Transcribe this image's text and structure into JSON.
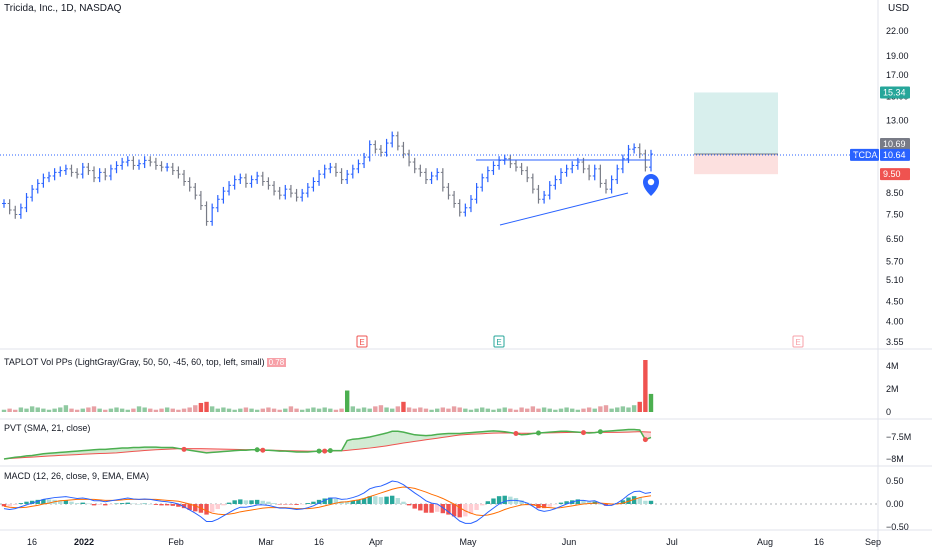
{
  "header": {
    "symbol_title": "Tricida, Inc., 1D, NASDAQ",
    "currency": "USD"
  },
  "price_axis": {
    "ticks": [
      "22.00",
      "19.00",
      "17.00",
      "15.00",
      "13.00",
      "11.00",
      "9.50",
      "8.50",
      "7.50",
      "6.50",
      "5.70",
      "5.10",
      "4.50",
      "4.00",
      "3.55"
    ],
    "ticker_tag": "TCDA",
    "last_price": "10.64",
    "entry_label": "10.69",
    "target_label": "15.34",
    "stop_label": "9.50"
  },
  "colors": {
    "up": "#2962ff",
    "down": "#787b86",
    "target": "#26a69a",
    "stop": "#ef5350",
    "pvt_up": "#4caf50",
    "pvt_down": "#ef5350"
  },
  "earnings": {
    "marker_label": "E"
  },
  "volume_pane": {
    "label": "TAPLOT Vol PPs (LightGray/Gray, 50, 50, -45, 60, top, left, small)",
    "badge": "0.78",
    "ticks": [
      "4M",
      "2M",
      "0"
    ]
  },
  "pvt_pane": {
    "label": "PVT (SMA, 21, close)",
    "ticks": [
      "−7.5M",
      "−8M"
    ]
  },
  "macd_pane": {
    "label": "MACD (12, 26, close, 9, EMA, EMA)",
    "ticks": [
      "0.50",
      "0.00",
      "−0.50"
    ]
  },
  "time_axis": {
    "ticks": [
      "16",
      "2022",
      "Feb",
      "Mar",
      "16",
      "Apr",
      "May",
      "Jun",
      "Jul",
      "Aug",
      "16",
      "Sep"
    ]
  },
  "chart_data": {
    "type": "ohlc",
    "price_values": [
      8.0,
      7.7,
      7.5,
      7.8,
      8.3,
      8.7,
      9.0,
      9.3,
      9.4,
      9.6,
      9.7,
      9.8,
      9.6,
      9.5,
      9.9,
      9.7,
      9.3,
      9.6,
      9.4,
      9.8,
      10.0,
      10.2,
      10.3,
      10.0,
      10.1,
      10.3,
      10.2,
      10.0,
      9.9,
      9.9,
      9.7,
      9.5,
      9.1,
      8.8,
      8.4,
      7.9,
      7.2,
      7.8,
      8.2,
      8.6,
      8.9,
      9.2,
      9.3,
      9.0,
      9.2,
      9.4,
      9.1,
      8.9,
      8.6,
      8.4,
      8.7,
      8.5,
      8.3,
      8.5,
      8.8,
      9.1,
      9.5,
      9.8,
      9.9,
      9.6,
      9.2,
      9.5,
      9.8,
      10.1,
      10.5,
      11.3,
      11.0,
      10.8,
      11.4,
      11.9,
      11.2,
      10.7,
      10.2,
      9.8,
      9.6,
      9.2,
      9.4,
      9.6,
      8.8,
      8.4,
      8.0,
      7.6,
      7.8,
      8.2,
      8.8,
      9.3,
      9.7,
      10.0,
      10.3,
      10.4,
      10.1,
      9.9,
      9.7,
      9.3,
      8.7,
      8.2,
      8.4,
      8.9,
      9.2,
      9.6,
      9.8,
      10.0,
      10.2,
      9.8,
      9.4,
      9.8,
      9.0,
      8.7,
      9.2,
      9.8,
      10.4,
      11.0,
      11.1,
      10.7,
      9.9,
      10.69
    ],
    "entry": 10.69,
    "target": 15.34,
    "stop": 9.5,
    "last": 10.64,
    "volume_millions": [
      0.2,
      0.3,
      0.2,
      0.4,
      0.3,
      0.5,
      0.4,
      0.3,
      0.2,
      0.3,
      0.4,
      0.6,
      0.3,
      0.2,
      0.3,
      0.4,
      0.5,
      0.3,
      0.2,
      0.3,
      0.4,
      0.3,
      0.2,
      0.3,
      0.5,
      0.4,
      0.3,
      0.2,
      0.3,
      0.4,
      0.3,
      0.2,
      0.3,
      0.4,
      0.6,
      0.8,
      0.9,
      0.5,
      0.3,
      0.4,
      0.3,
      0.2,
      0.3,
      0.4,
      0.3,
      0.2,
      0.3,
      0.4,
      0.3,
      0.2,
      0.3,
      0.5,
      0.3,
      0.2,
      0.3,
      0.4,
      0.3,
      0.4,
      0.3,
      0.2,
      0.3,
      1.9,
      0.5,
      0.3,
      0.4,
      0.3,
      0.5,
      0.6,
      0.4,
      0.3,
      0.5,
      0.9,
      0.4,
      0.3,
      0.4,
      0.3,
      0.2,
      0.3,
      0.4,
      0.3,
      0.5,
      0.4,
      0.3,
      0.2,
      0.3,
      0.4,
      0.3,
      0.2,
      0.3,
      0.4,
      0.3,
      0.2,
      0.4,
      0.3,
      0.5,
      0.3,
      0.4,
      0.3,
      0.2,
      0.3,
      0.4,
      0.3,
      0.2,
      0.3,
      0.4,
      0.3,
      0.5,
      0.6,
      0.3,
      0.4,
      0.5,
      0.4,
      0.6,
      0.9,
      4.6,
      1.6
    ],
    "pvt": [
      -8.0,
      -7.98,
      -7.96,
      -7.95,
      -7.93,
      -7.92,
      -7.9,
      -7.88,
      -7.87,
      -7.86,
      -7.85,
      -7.84,
      -7.83,
      -7.82,
      -7.81,
      -7.8,
      -7.79,
      -7.78,
      -7.78,
      -7.77,
      -7.76,
      -7.75,
      -7.75,
      -7.74,
      -7.74,
      -7.73,
      -7.73,
      -7.73,
      -7.74,
      -7.74,
      -7.74,
      -7.76,
      -7.78,
      -7.8,
      -7.82,
      -7.84,
      -7.86,
      -7.85,
      -7.84,
      -7.83,
      -7.82,
      -7.81,
      -7.8,
      -7.8,
      -7.79,
      -7.79,
      -7.8,
      -7.8,
      -7.81,
      -7.82,
      -7.82,
      -7.83,
      -7.84,
      -7.84,
      -7.84,
      -7.83,
      -7.82,
      -7.82,
      -7.81,
      -7.81,
      -7.81,
      -7.58,
      -7.55,
      -7.54,
      -7.52,
      -7.5,
      -7.47,
      -7.44,
      -7.41,
      -7.37,
      -7.37,
      -7.39,
      -7.42,
      -7.45,
      -7.46,
      -7.47,
      -7.46,
      -7.44,
      -7.43,
      -7.42,
      -7.42,
      -7.42,
      -7.41,
      -7.4,
      -7.39,
      -7.38,
      -7.37,
      -7.36,
      -7.37,
      -7.38,
      -7.4,
      -7.42,
      -7.45,
      -7.44,
      -7.42,
      -7.41,
      -7.4,
      -7.39,
      -7.38,
      -7.37,
      -7.37,
      -7.38,
      -7.39,
      -7.4,
      -7.41,
      -7.4,
      -7.38,
      -7.37,
      -7.36,
      -7.35,
      -7.34,
      -7.33,
      -7.33,
      -7.34,
      -7.56,
      -7.51
    ],
    "macd": [
      -0.1,
      -0.12,
      -0.1,
      -0.06,
      -0.02,
      0.02,
      0.06,
      0.1,
      0.12,
      0.14,
      0.15,
      0.16,
      0.14,
      0.12,
      0.13,
      0.11,
      0.07,
      0.07,
      0.05,
      0.07,
      0.09,
      0.11,
      0.13,
      0.11,
      0.1,
      0.11,
      0.1,
      0.08,
      0.06,
      0.05,
      0.03,
      0.0,
      -0.06,
      -0.13,
      -0.2,
      -0.28,
      -0.38,
      -0.38,
      -0.33,
      -0.26,
      -0.19,
      -0.12,
      -0.07,
      -0.07,
      -0.05,
      -0.02,
      -0.02,
      -0.03,
      -0.06,
      -0.09,
      -0.09,
      -0.1,
      -0.12,
      -0.11,
      -0.08,
      -0.04,
      0.02,
      0.08,
      0.13,
      0.13,
      0.1,
      0.11,
      0.14,
      0.18,
      0.24,
      0.33,
      0.37,
      0.39,
      0.44,
      0.5,
      0.48,
      0.42,
      0.33,
      0.24,
      0.16,
      0.07,
      0.02,
      0.0,
      -0.08,
      -0.17,
      -0.27,
      -0.37,
      -0.42,
      -0.42,
      -0.37,
      -0.28,
      -0.18,
      -0.09,
      0.0,
      0.06,
      0.08,
      0.08,
      0.06,
      0.02,
      -0.05,
      -0.13,
      -0.16,
      -0.14,
      -0.1,
      -0.05,
      0.0,
      0.04,
      0.08,
      0.08,
      0.06,
      0.07,
      0.02,
      -0.03,
      -0.03,
      0.02,
      0.1,
      0.2,
      0.27,
      0.28,
      0.23,
      0.25
    ],
    "signal": [
      -0.05,
      -0.07,
      -0.08,
      -0.08,
      -0.07,
      -0.05,
      -0.03,
      0.0,
      0.02,
      0.05,
      0.07,
      0.08,
      0.09,
      0.1,
      0.1,
      0.1,
      0.1,
      0.09,
      0.08,
      0.08,
      0.08,
      0.09,
      0.1,
      0.1,
      0.1,
      0.1,
      0.1,
      0.1,
      0.09,
      0.08,
      0.07,
      0.06,
      0.03,
      0.0,
      -0.04,
      -0.09,
      -0.15,
      -0.2,
      -0.22,
      -0.23,
      -0.22,
      -0.2,
      -0.17,
      -0.15,
      -0.13,
      -0.11,
      -0.09,
      -0.08,
      -0.08,
      -0.08,
      -0.08,
      -0.09,
      -0.1,
      -0.1,
      -0.1,
      -0.09,
      -0.07,
      -0.04,
      -0.01,
      0.02,
      0.04,
      0.05,
      0.07,
      0.09,
      0.12,
      0.16,
      0.2,
      0.24,
      0.28,
      0.32,
      0.35,
      0.37,
      0.36,
      0.34,
      0.3,
      0.26,
      0.21,
      0.17,
      0.12,
      0.06,
      0.0,
      -0.08,
      -0.15,
      -0.2,
      -0.24,
      -0.25,
      -0.24,
      -0.21,
      -0.17,
      -0.12,
      -0.08,
      -0.05,
      -0.02,
      -0.01,
      -0.02,
      -0.04,
      -0.07,
      -0.08,
      -0.09,
      -0.08,
      -0.06,
      -0.04,
      -0.02,
      0.0,
      0.01,
      0.02,
      0.02,
      0.01,
      0.0,
      0.0,
      0.02,
      0.06,
      0.1,
      0.14,
      0.16,
      0.18
    ]
  }
}
